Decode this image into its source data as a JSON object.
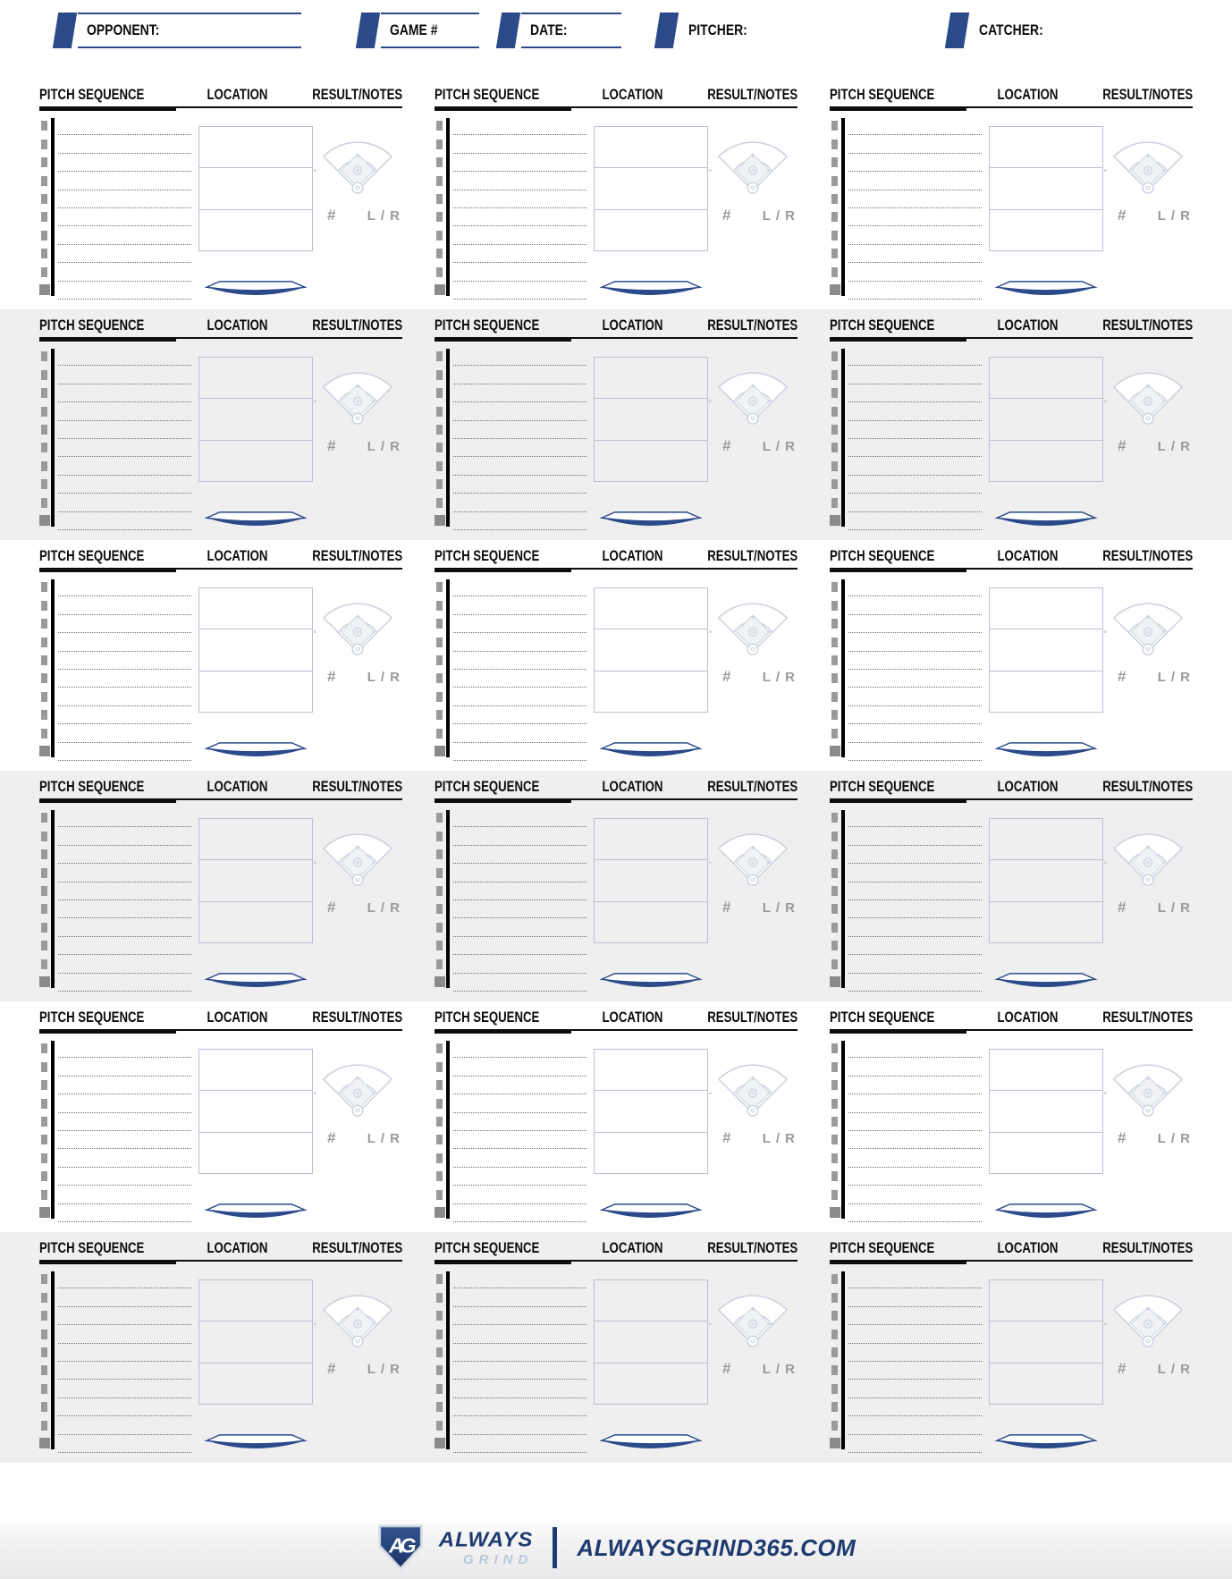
{
  "header": {
    "opponent_label": "OPPONENT:",
    "game_label": "GAME #",
    "date_label": "DATE:",
    "pitcher_label": "PITCHER:",
    "catcher_label": "CATCHER:"
  },
  "block": {
    "pitch_sequence_header": "PITCH SEQUENCE",
    "location_header": "LOCATION",
    "result_header": "RESULT/NOTES",
    "jersey_symbol": "#",
    "handedness_label": "L / R",
    "pitch_line_count": 10,
    "strike_zone_cells": 3
  },
  "grid": {
    "rows": 6,
    "columns": 3,
    "alternating_row_shading": true
  },
  "footer": {
    "monogram": "AG",
    "brand_top": "ALWAYS",
    "brand_bottom": "GRIND",
    "website": "ALWAYSGRIND365.COM"
  },
  "colors": {
    "accent_navy": "#2b4a8a",
    "brand_navy": "#1e3a70",
    "alt_row_gray": "#efefef",
    "field_outline": "#ccd1de",
    "zone_border": "#b9c0d2",
    "muted_text": "#9a9a9a",
    "line_black": "#0d0d0d"
  }
}
